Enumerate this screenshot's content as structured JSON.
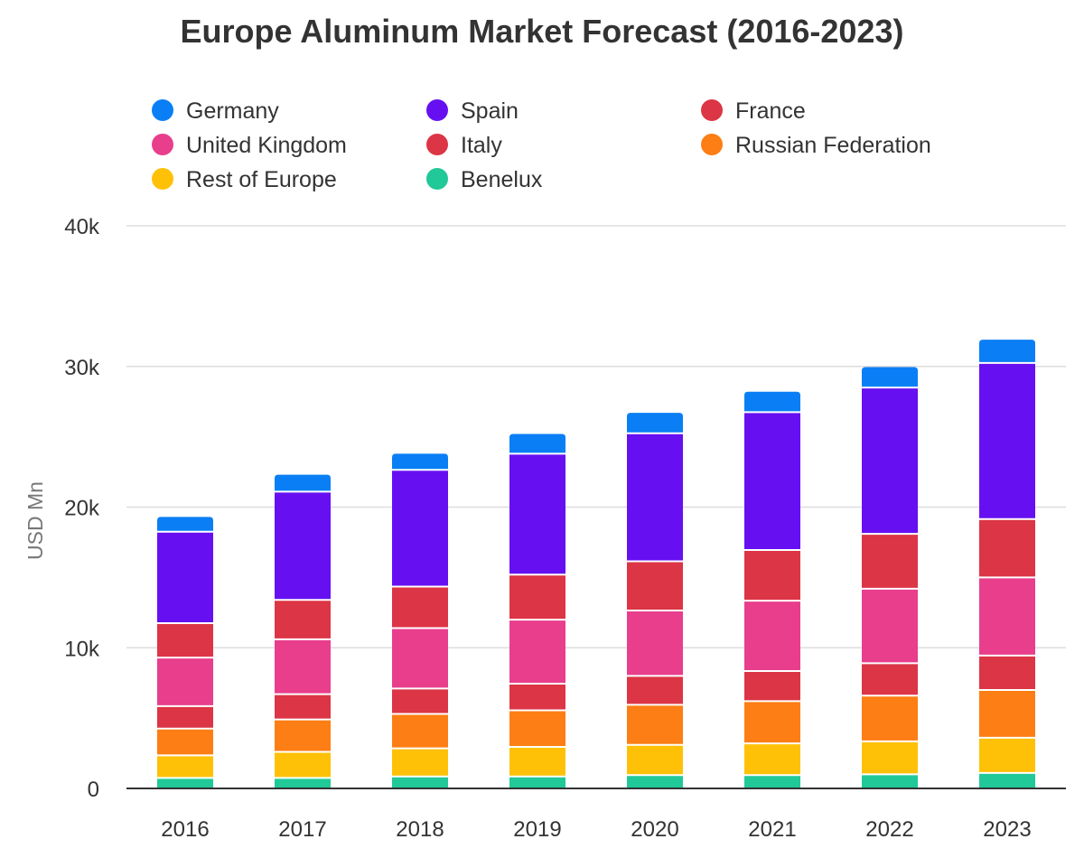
{
  "chart_data": {
    "type": "bar",
    "stacked": true,
    "title": "Europe Aluminum Market Forecast (2016-2023)",
    "xlabel": "",
    "ylabel": "USD Mn",
    "ylim": [
      0,
      40000
    ],
    "yticks": [
      0,
      10000,
      20000,
      30000,
      40000
    ],
    "ytick_labels": [
      "0",
      "10k",
      "20k",
      "30k",
      "40k"
    ],
    "grid": true,
    "legend_position": "top",
    "categories": [
      "2016",
      "2017",
      "2018",
      "2019",
      "2020",
      "2021",
      "2022",
      "2023"
    ],
    "legend": [
      {
        "name": "Germany",
        "color": "#0a7ff5"
      },
      {
        "name": "Spain",
        "color": "#6610f2"
      },
      {
        "name": "France",
        "color": "#dc3545"
      },
      {
        "name": "United Kingdom",
        "color": "#e83e8c"
      },
      {
        "name": "Italy",
        "color": "#dc3545"
      },
      {
        "name": "Russian Federation",
        "color": "#fd7e14"
      },
      {
        "name": "Rest of Europe",
        "color": "#ffc107"
      },
      {
        "name": "Benelux",
        "color": "#20c997"
      }
    ],
    "series": [
      {
        "name": "Benelux",
        "color": "#20c997",
        "values": [
          750,
          750,
          850,
          850,
          950,
          950,
          1000,
          1100
        ]
      },
      {
        "name": "Rest of Europe",
        "color": "#ffc107",
        "values": [
          1600,
          1850,
          2000,
          2100,
          2150,
          2250,
          2350,
          2500
        ]
      },
      {
        "name": "Russian Federation",
        "color": "#fd7e14",
        "values": [
          1900,
          2300,
          2450,
          2600,
          2850,
          3000,
          3250,
          3400
        ]
      },
      {
        "name": "Italy",
        "color": "#dc3545",
        "values": [
          1600,
          1800,
          1800,
          1900,
          2050,
          2150,
          2300,
          2450
        ]
      },
      {
        "name": "United Kingdom",
        "color": "#e83e8c",
        "values": [
          3450,
          3900,
          4300,
          4550,
          4650,
          5000,
          5300,
          5550
        ]
      },
      {
        "name": "France",
        "color": "#dc3545",
        "values": [
          2450,
          2800,
          2950,
          3200,
          3500,
          3600,
          3900,
          4150
        ]
      },
      {
        "name": "Spain",
        "color": "#6610f2",
        "values": [
          6500,
          7700,
          8300,
          8600,
          9100,
          9800,
          10400,
          11100
        ]
      },
      {
        "name": "Germany",
        "color": "#0a7ff5",
        "values": [
          1050,
          1200,
          1150,
          1400,
          1450,
          1450,
          1450,
          1650
        ]
      }
    ]
  }
}
